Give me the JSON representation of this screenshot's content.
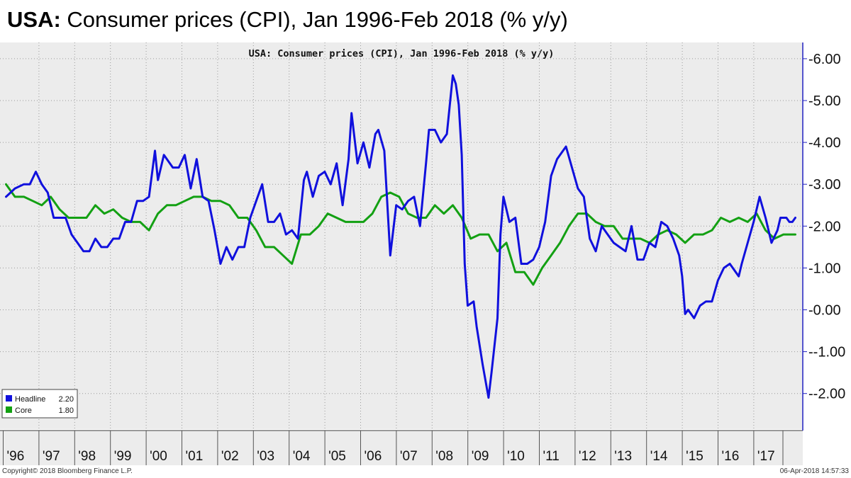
{
  "slide": {
    "title_bold": "USA:",
    "title_rest": " Consumer prices (CPI), Jan 1996-Feb 2018 (% y/y)"
  },
  "footer": {
    "copyright": "Copyright© 2018 Bloomberg Finance L.P.",
    "timestamp": "06-Apr-2018 14:57:33"
  },
  "colors": {
    "headline": "#1010dd",
    "core": "#13a013",
    "background": "#ececec",
    "grid": "#9a9a9a",
    "axis": "#2020c0"
  },
  "chart_data": {
    "type": "line",
    "title": "USA: Consumer prices (CPI), Jan 1996-Feb 2018 (% y/y)",
    "x_start": "1996-01",
    "x_end": "2018-02",
    "ylim": [
      -3.0,
      6.4
    ],
    "y_ticks": [
      "6.00",
      "5.00",
      "4.00",
      "3.00",
      "2.00",
      "1.00",
      "0.00",
      "-1.00",
      "-2.00"
    ],
    "x_tick_labels": [
      "'96",
      "'97",
      "'98",
      "'99",
      "'00",
      "'01",
      "'02",
      "'03",
      "'04",
      "'05",
      "'06",
      "'07",
      "'08",
      "'09",
      "'10",
      "'11",
      "'12",
      "'13",
      "'14",
      "'15",
      "'16",
      "'17"
    ],
    "grid": true,
    "legend_position": "bottom-left",
    "series": [
      {
        "name": "Headline",
        "last_value": "2.20",
        "points": [
          [
            "1996-01",
            2.7
          ],
          [
            "1996-04",
            2.9
          ],
          [
            "1996-07",
            3.0
          ],
          [
            "1996-09",
            3.0
          ],
          [
            "1996-11",
            3.3
          ],
          [
            "1997-01",
            3.0
          ],
          [
            "1997-03",
            2.8
          ],
          [
            "1997-05",
            2.2
          ],
          [
            "1997-07",
            2.2
          ],
          [
            "1997-09",
            2.2
          ],
          [
            "1997-11",
            1.8
          ],
          [
            "1998-01",
            1.6
          ],
          [
            "1998-03",
            1.4
          ],
          [
            "1998-05",
            1.4
          ],
          [
            "1998-07",
            1.7
          ],
          [
            "1998-09",
            1.5
          ],
          [
            "1998-11",
            1.5
          ],
          [
            "1999-01",
            1.7
          ],
          [
            "1999-03",
            1.7
          ],
          [
            "1999-05",
            2.1
          ],
          [
            "1999-07",
            2.1
          ],
          [
            "1999-09",
            2.6
          ],
          [
            "1999-11",
            2.6
          ],
          [
            "2000-01",
            2.7
          ],
          [
            "2000-03",
            3.8
          ],
          [
            "2000-04",
            3.1
          ],
          [
            "2000-06",
            3.7
          ],
          [
            "2000-09",
            3.4
          ],
          [
            "2000-11",
            3.4
          ],
          [
            "2001-01",
            3.7
          ],
          [
            "2001-03",
            2.9
          ],
          [
            "2001-05",
            3.6
          ],
          [
            "2001-07",
            2.7
          ],
          [
            "2001-09",
            2.6
          ],
          [
            "2001-11",
            1.9
          ],
          [
            "2002-01",
            1.1
          ],
          [
            "2002-03",
            1.5
          ],
          [
            "2002-05",
            1.2
          ],
          [
            "2002-07",
            1.5
          ],
          [
            "2002-09",
            1.5
          ],
          [
            "2002-11",
            2.2
          ],
          [
            "2003-01",
            2.6
          ],
          [
            "2003-03",
            3.0
          ],
          [
            "2003-05",
            2.1
          ],
          [
            "2003-07",
            2.1
          ],
          [
            "2003-09",
            2.3
          ],
          [
            "2003-11",
            1.8
          ],
          [
            "2004-01",
            1.9
          ],
          [
            "2004-03",
            1.7
          ],
          [
            "2004-05",
            3.1
          ],
          [
            "2004-06",
            3.3
          ],
          [
            "2004-08",
            2.7
          ],
          [
            "2004-10",
            3.2
          ],
          [
            "2004-12",
            3.3
          ],
          [
            "2005-02",
            3.0
          ],
          [
            "2005-04",
            3.5
          ],
          [
            "2005-06",
            2.5
          ],
          [
            "2005-08",
            3.6
          ],
          [
            "2005-09",
            4.7
          ],
          [
            "2005-11",
            3.5
          ],
          [
            "2006-01",
            4.0
          ],
          [
            "2006-03",
            3.4
          ],
          [
            "2006-05",
            4.2
          ],
          [
            "2006-06",
            4.3
          ],
          [
            "2006-08",
            3.8
          ],
          [
            "2006-10",
            1.3
          ],
          [
            "2006-12",
            2.5
          ],
          [
            "2007-02",
            2.4
          ],
          [
            "2007-04",
            2.6
          ],
          [
            "2007-06",
            2.7
          ],
          [
            "2007-08",
            2.0
          ],
          [
            "2007-10",
            3.5
          ],
          [
            "2007-11",
            4.3
          ],
          [
            "2008-01",
            4.3
          ],
          [
            "2008-03",
            4.0
          ],
          [
            "2008-05",
            4.2
          ],
          [
            "2008-07",
            5.6
          ],
          [
            "2008-08",
            5.4
          ],
          [
            "2008-09",
            4.9
          ],
          [
            "2008-10",
            3.7
          ],
          [
            "2008-11",
            1.1
          ],
          [
            "2008-12",
            0.1
          ],
          [
            "2009-02",
            0.2
          ],
          [
            "2009-03",
            -0.4
          ],
          [
            "2009-05",
            -1.3
          ],
          [
            "2009-07",
            -2.1
          ],
          [
            "2009-08",
            -1.5
          ],
          [
            "2009-10",
            -0.2
          ],
          [
            "2009-11",
            1.8
          ],
          [
            "2009-12",
            2.7
          ],
          [
            "2010-02",
            2.1
          ],
          [
            "2010-04",
            2.2
          ],
          [
            "2010-06",
            1.1
          ],
          [
            "2010-08",
            1.1
          ],
          [
            "2010-10",
            1.2
          ],
          [
            "2010-12",
            1.5
          ],
          [
            "2011-02",
            2.1
          ],
          [
            "2011-04",
            3.2
          ],
          [
            "2011-06",
            3.6
          ],
          [
            "2011-08",
            3.8
          ],
          [
            "2011-09",
            3.9
          ],
          [
            "2011-11",
            3.4
          ],
          [
            "2012-01",
            2.9
          ],
          [
            "2012-03",
            2.7
          ],
          [
            "2012-05",
            1.7
          ],
          [
            "2012-07",
            1.4
          ],
          [
            "2012-09",
            2.0
          ],
          [
            "2012-11",
            1.8
          ],
          [
            "2013-01",
            1.6
          ],
          [
            "2013-03",
            1.5
          ],
          [
            "2013-05",
            1.4
          ],
          [
            "2013-07",
            2.0
          ],
          [
            "2013-09",
            1.2
          ],
          [
            "2013-11",
            1.2
          ],
          [
            "2014-01",
            1.6
          ],
          [
            "2014-03",
            1.5
          ],
          [
            "2014-05",
            2.1
          ],
          [
            "2014-07",
            2.0
          ],
          [
            "2014-09",
            1.7
          ],
          [
            "2014-11",
            1.3
          ],
          [
            "2014-12",
            0.8
          ],
          [
            "2015-01",
            -0.1
          ],
          [
            "2015-02",
            0.0
          ],
          [
            "2015-04",
            -0.2
          ],
          [
            "2015-06",
            0.1
          ],
          [
            "2015-08",
            0.2
          ],
          [
            "2015-10",
            0.2
          ],
          [
            "2015-12",
            0.7
          ],
          [
            "2016-02",
            1.0
          ],
          [
            "2016-04",
            1.1
          ],
          [
            "2016-05",
            1.0
          ],
          [
            "2016-07",
            0.8
          ],
          [
            "2016-08",
            1.1
          ],
          [
            "2016-10",
            1.6
          ],
          [
            "2016-12",
            2.1
          ],
          [
            "2017-02",
            2.7
          ],
          [
            "2017-04",
            2.2
          ],
          [
            "2017-06",
            1.6
          ],
          [
            "2017-08",
            1.9
          ],
          [
            "2017-09",
            2.2
          ],
          [
            "2017-11",
            2.2
          ],
          [
            "2017-12",
            2.1
          ],
          [
            "2018-01",
            2.1
          ],
          [
            "2018-02",
            2.2
          ]
        ]
      },
      {
        "name": "Core",
        "last_value": "1.80",
        "points": [
          [
            "1996-01",
            3.0
          ],
          [
            "1996-04",
            2.7
          ],
          [
            "1996-07",
            2.7
          ],
          [
            "1996-10",
            2.6
          ],
          [
            "1997-01",
            2.5
          ],
          [
            "1997-04",
            2.7
          ],
          [
            "1997-07",
            2.4
          ],
          [
            "1997-10",
            2.2
          ],
          [
            "1998-01",
            2.2
          ],
          [
            "1998-04",
            2.2
          ],
          [
            "1998-07",
            2.5
          ],
          [
            "1998-10",
            2.3
          ],
          [
            "1999-01",
            2.4
          ],
          [
            "1999-04",
            2.2
          ],
          [
            "1999-07",
            2.1
          ],
          [
            "1999-10",
            2.1
          ],
          [
            "2000-01",
            1.9
          ],
          [
            "2000-04",
            2.3
          ],
          [
            "2000-07",
            2.5
          ],
          [
            "2000-10",
            2.5
          ],
          [
            "2001-01",
            2.6
          ],
          [
            "2001-04",
            2.7
          ],
          [
            "2001-07",
            2.7
          ],
          [
            "2001-10",
            2.6
          ],
          [
            "2002-01",
            2.6
          ],
          [
            "2002-04",
            2.5
          ],
          [
            "2002-07",
            2.2
          ],
          [
            "2002-10",
            2.2
          ],
          [
            "2003-01",
            1.9
          ],
          [
            "2003-04",
            1.5
          ],
          [
            "2003-07",
            1.5
          ],
          [
            "2003-10",
            1.3
          ],
          [
            "2004-01",
            1.1
          ],
          [
            "2004-04",
            1.8
          ],
          [
            "2004-07",
            1.8
          ],
          [
            "2004-10",
            2.0
          ],
          [
            "2005-01",
            2.3
          ],
          [
            "2005-04",
            2.2
          ],
          [
            "2005-07",
            2.1
          ],
          [
            "2005-10",
            2.1
          ],
          [
            "2006-01",
            2.1
          ],
          [
            "2006-04",
            2.3
          ],
          [
            "2006-07",
            2.7
          ],
          [
            "2006-10",
            2.8
          ],
          [
            "2007-01",
            2.7
          ],
          [
            "2007-04",
            2.3
          ],
          [
            "2007-07",
            2.2
          ],
          [
            "2007-10",
            2.2
          ],
          [
            "2008-01",
            2.5
          ],
          [
            "2008-04",
            2.3
          ],
          [
            "2008-07",
            2.5
          ],
          [
            "2008-10",
            2.2
          ],
          [
            "2009-01",
            1.7
          ],
          [
            "2009-04",
            1.8
          ],
          [
            "2009-07",
            1.8
          ],
          [
            "2009-10",
            1.4
          ],
          [
            "2010-01",
            1.6
          ],
          [
            "2010-04",
            0.9
          ],
          [
            "2010-07",
            0.9
          ],
          [
            "2010-10",
            0.6
          ],
          [
            "2011-01",
            1.0
          ],
          [
            "2011-04",
            1.3
          ],
          [
            "2011-07",
            1.6
          ],
          [
            "2011-10",
            2.0
          ],
          [
            "2012-01",
            2.3
          ],
          [
            "2012-04",
            2.3
          ],
          [
            "2012-07",
            2.1
          ],
          [
            "2012-10",
            2.0
          ],
          [
            "2013-01",
            2.0
          ],
          [
            "2013-04",
            1.7
          ],
          [
            "2013-07",
            1.7
          ],
          [
            "2013-10",
            1.7
          ],
          [
            "2014-01",
            1.6
          ],
          [
            "2014-04",
            1.8
          ],
          [
            "2014-07",
            1.9
          ],
          [
            "2014-10",
            1.8
          ],
          [
            "2015-01",
            1.6
          ],
          [
            "2015-04",
            1.8
          ],
          [
            "2015-07",
            1.8
          ],
          [
            "2015-10",
            1.9
          ],
          [
            "2016-01",
            2.2
          ],
          [
            "2016-04",
            2.1
          ],
          [
            "2016-07",
            2.2
          ],
          [
            "2016-10",
            2.1
          ],
          [
            "2017-01",
            2.3
          ],
          [
            "2017-04",
            1.9
          ],
          [
            "2017-07",
            1.7
          ],
          [
            "2017-10",
            1.8
          ],
          [
            "2018-01",
            1.8
          ],
          [
            "2018-02",
            1.8
          ]
        ]
      }
    ]
  }
}
